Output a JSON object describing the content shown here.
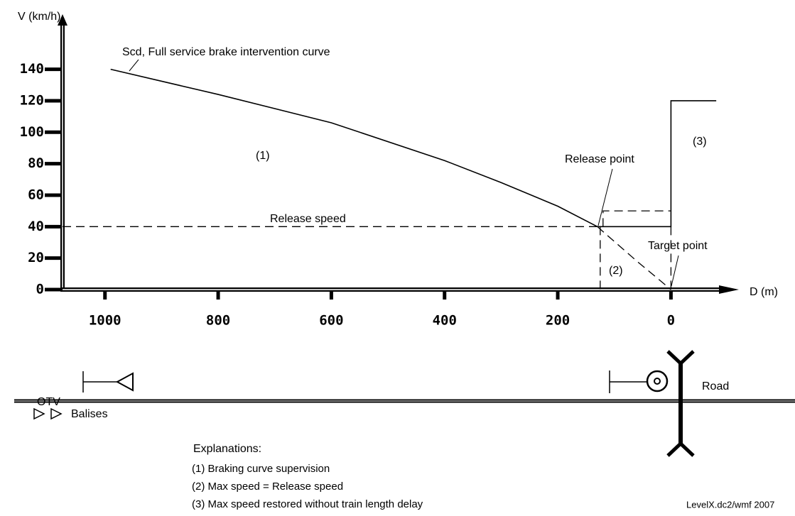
{
  "chart_data": {
    "type": "line",
    "y_label": "V (km/h)",
    "x_label": "D (m)",
    "xlim": [
      1075,
      -120
    ],
    "ylim": [
      0,
      175
    ],
    "xticks": [
      1000,
      800,
      600,
      400,
      200,
      0
    ],
    "yticks": [
      0,
      20,
      40,
      60,
      80,
      100,
      120,
      140
    ],
    "series": [
      {
        "color": "#000000",
        "style": "solid",
        "x": [
          990,
          800,
          600,
          400,
          300,
          200,
          130
        ],
        "values": [
          140,
          124,
          106,
          82,
          68,
          53,
          40
        ]
      },
      {
        "color": "#000000",
        "style": "dashed",
        "x": [
          1075,
          130
        ],
        "values": [
          40,
          40
        ]
      },
      {
        "color": "#000000",
        "style": "dashed",
        "x": [
          130,
          60,
          0
        ],
        "values": [
          40,
          18,
          0
        ]
      },
      {
        "color": "#000000",
        "style": "solid",
        "x": [
          130,
          0,
          0,
          -80
        ],
        "values": [
          40,
          40,
          120,
          120
        ]
      },
      {
        "color": "#000000",
        "style": "dashed",
        "x": [
          120,
          120,
          0
        ],
        "values": [
          40,
          50,
          50
        ]
      },
      {
        "color": "#000000",
        "style": "dashed",
        "x": [
          125,
          125
        ],
        "values": [
          40,
          0
        ]
      },
      {
        "color": "#000000",
        "style": "dashed",
        "x": [
          0,
          0
        ],
        "values": [
          40,
          0
        ]
      }
    ],
    "annotations": {
      "curve": "Scd, Full service brake intervention curve",
      "area1": "(1)",
      "area2": "(2)",
      "area3": "(3)",
      "release_point": "Release point",
      "release_speed": "Release speed",
      "target_point": "Target point"
    }
  },
  "track": {
    "otv": "OTV",
    "balises": "Balises",
    "road": "Road"
  },
  "explanations": {
    "title": "Explanations:",
    "items": [
      "(1) Braking curve supervision",
      "(2) Max speed = Release speed",
      "(3) Max speed restored without train length delay"
    ]
  },
  "footer": "LevelX.dc2/wmf 2007"
}
